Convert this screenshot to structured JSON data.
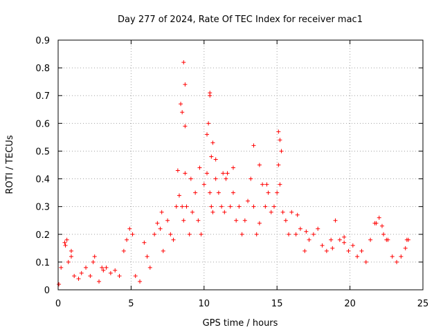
{
  "chart_data": {
    "type": "scatter",
    "title": "Day 277 of 2024, Rate Of TEC Index for receiver mac1",
    "xlabel": "GPS time / hours",
    "ylabel": "ROTI / TECUs",
    "xlim": [
      0,
      25
    ],
    "ylim": [
      0,
      0.9
    ],
    "xticks": [
      "0",
      "5",
      "10",
      "15",
      "20",
      "25"
    ],
    "yticks": [
      "0",
      "0.1",
      "0.2",
      "0.3",
      "0.4",
      "0.5",
      "0.6",
      "0.7",
      "0.8",
      "0.9"
    ],
    "grid": true,
    "marker": "+",
    "color": "#ff0000",
    "series": [
      {
        "x": [
          0.05,
          0.2,
          0.45,
          0.6,
          0.7,
          0.9,
          1.1,
          1.4,
          1.6,
          1.9,
          2.2,
          2.5,
          2.8,
          3.1,
          3.3,
          3.6,
          3.9,
          4.2,
          4.5,
          4.7,
          4.9,
          5.1,
          5.3,
          5.6,
          5.9,
          6.1,
          6.3,
          6.6,
          6.8,
          7.0,
          7.2,
          7.5,
          7.7,
          7.9,
          8.1,
          8.3,
          8.5,
          8.6,
          8.7,
          8.8,
          9.0,
          9.2,
          9.4,
          9.6,
          9.8,
          10.0,
          10.2,
          10.4,
          10.5,
          10.6,
          10.8,
          11.0,
          11.2,
          11.4,
          11.6,
          11.8,
          12.0,
          12.2,
          12.4,
          12.6,
          12.8,
          13.0,
          13.2,
          13.4,
          13.6,
          13.8,
          14.0,
          14.2,
          14.4,
          14.6,
          14.8,
          15.0,
          15.2,
          15.4,
          15.6,
          15.8,
          16.0,
          16.3,
          16.6,
          16.9,
          17.2,
          17.5,
          17.8,
          18.1,
          18.4,
          18.7,
          19.0,
          19.3,
          19.6,
          19.9,
          20.2,
          20.5,
          20.8,
          21.1,
          21.4,
          21.7,
          22.0,
          22.3,
          22.6,
          22.9,
          23.2,
          23.5,
          23.8,
          24.0,
          8.6,
          8.7,
          8.4,
          8.5,
          8.7,
          10.4,
          10.4,
          10.3,
          10.6,
          10.5,
          13.8,
          14.3,
          15.1,
          15.2,
          15.3,
          15.1,
          12.0,
          13.4,
          10.2,
          10.8,
          11.3,
          11.5,
          8.2,
          9.1,
          9.7,
          0.5,
          0.9,
          2.4,
          3.0,
          18.8,
          19.6,
          21.8,
          22.2,
          22.5,
          23.9,
          16.4,
          17.0,
          7.1
        ],
        "y": [
          0.02,
          0.08,
          0.17,
          0.18,
          0.1,
          0.12,
          0.05,
          0.04,
          0.06,
          0.08,
          0.05,
          0.12,
          0.03,
          0.07,
          0.08,
          0.06,
          0.07,
          0.05,
          0.14,
          0.18,
          0.22,
          0.2,
          0.05,
          0.03,
          0.17,
          0.12,
          0.08,
          0.2,
          0.24,
          0.22,
          0.14,
          0.25,
          0.2,
          0.18,
          0.3,
          0.34,
          0.3,
          0.25,
          0.42,
          0.3,
          0.2,
          0.28,
          0.35,
          0.25,
          0.2,
          0.38,
          0.42,
          0.35,
          0.3,
          0.28,
          0.4,
          0.35,
          0.3,
          0.28,
          0.42,
          0.3,
          0.35,
          0.25,
          0.3,
          0.2,
          0.25,
          0.32,
          0.4,
          0.3,
          0.2,
          0.24,
          0.38,
          0.3,
          0.35,
          0.28,
          0.3,
          0.35,
          0.38,
          0.28,
          0.25,
          0.2,
          0.28,
          0.2,
          0.22,
          0.14,
          0.18,
          0.2,
          0.22,
          0.16,
          0.14,
          0.18,
          0.25,
          0.18,
          0.17,
          0.14,
          0.16,
          0.12,
          0.14,
          0.1,
          0.18,
          0.24,
          0.26,
          0.2,
          0.18,
          0.12,
          0.1,
          0.12,
          0.15,
          0.18,
          0.82,
          0.74,
          0.67,
          0.64,
          0.59,
          0.71,
          0.7,
          0.6,
          0.53,
          0.48,
          0.45,
          0.38,
          0.57,
          0.54,
          0.5,
          0.45,
          0.44,
          0.52,
          0.56,
          0.47,
          0.42,
          0.4,
          0.43,
          0.4,
          0.44,
          0.16,
          0.14,
          0.1,
          0.08,
          0.15,
          0.19,
          0.24,
          0.23,
          0.18,
          0.18,
          0.27,
          0.21,
          0.28
        ]
      }
    ]
  }
}
